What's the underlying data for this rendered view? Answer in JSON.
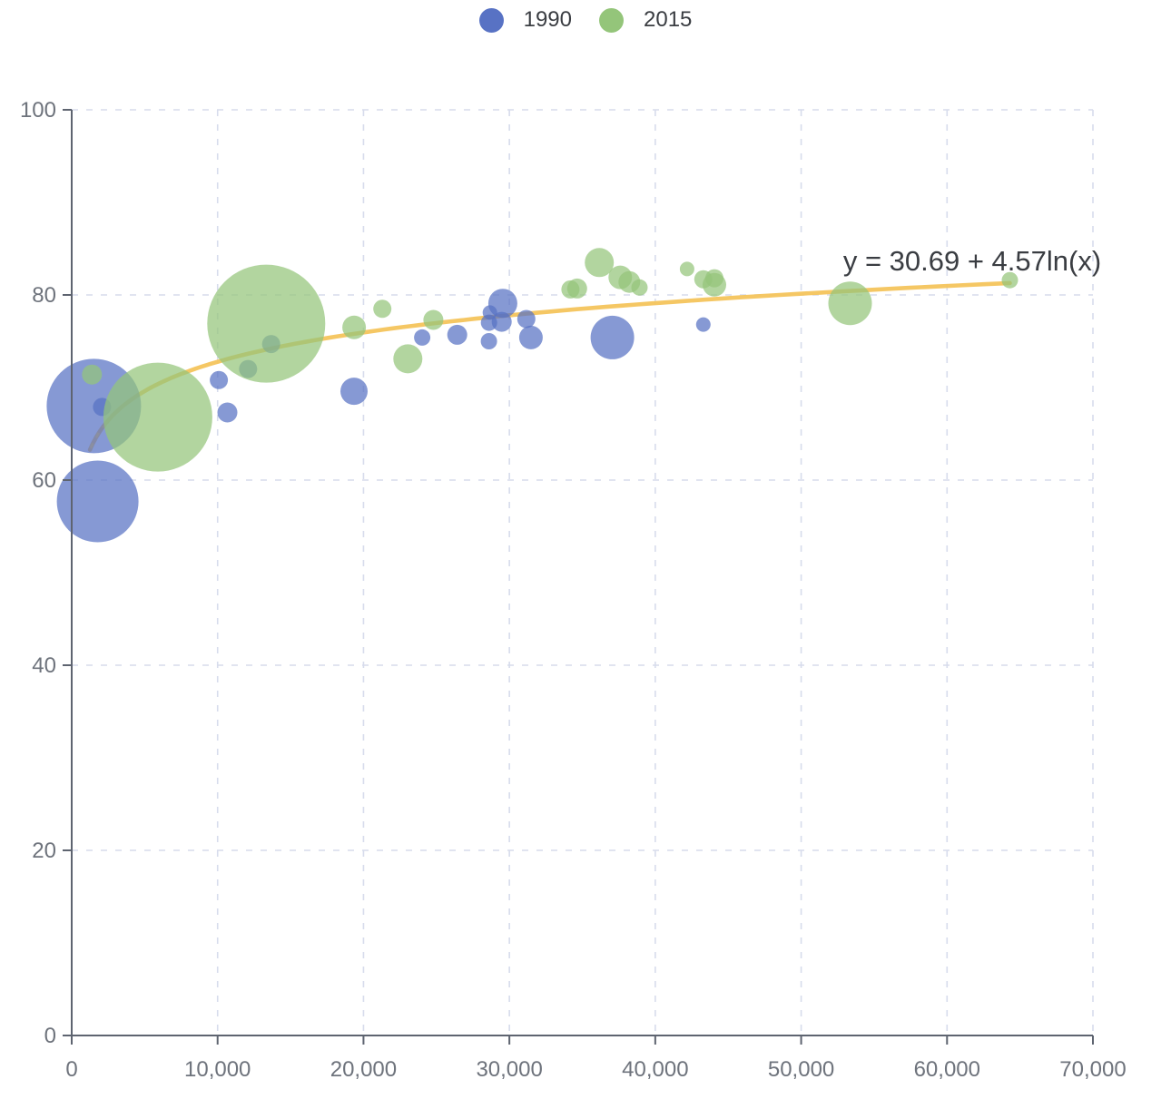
{
  "legend": {
    "items": [
      {
        "label": "1990",
        "color": "#5872c4"
      },
      {
        "label": "2015",
        "color": "#94c57a"
      }
    ]
  },
  "chart_data": {
    "type": "scatter",
    "title": "",
    "xlabel": "",
    "ylabel": "",
    "xlim": [
      0,
      70000
    ],
    "ylim": [
      0,
      100
    ],
    "grid": true,
    "legend_position": "top-center",
    "x_ticks": [
      {
        "value": 0,
        "label": "0"
      },
      {
        "value": 10000,
        "label": "10,000"
      },
      {
        "value": 20000,
        "label": "20,000"
      },
      {
        "value": 30000,
        "label": "30,000"
      },
      {
        "value": 40000,
        "label": "40,000"
      },
      {
        "value": 50000,
        "label": "50,000"
      },
      {
        "value": 60000,
        "label": "60,000"
      },
      {
        "value": 70000,
        "label": "70,000"
      }
    ],
    "y_ticks": [
      {
        "value": 0,
        "label": "0"
      },
      {
        "value": 20,
        "label": "20"
      },
      {
        "value": 40,
        "label": "40"
      },
      {
        "value": 60,
        "label": "60"
      },
      {
        "value": 80,
        "label": "80"
      },
      {
        "value": 100,
        "label": "100"
      }
    ],
    "series": [
      {
        "name": "1990",
        "color": "#5872c4",
        "opacity": 0.72,
        "points_xyr": [
          [
            1516,
            68.0,
            52
          ],
          [
            1777,
            57.7,
            45
          ],
          [
            2076,
            67.9,
            10
          ],
          [
            10088,
            70.8,
            10
          ],
          [
            10670,
            67.3,
            11
          ],
          [
            12087,
            72.0,
            10
          ],
          [
            13670,
            74.7,
            10
          ],
          [
            19349,
            69.6,
            15
          ],
          [
            24021,
            75.4,
            9
          ],
          [
            26424,
            75.7,
            11
          ],
          [
            28599,
            75.0,
            9
          ],
          [
            28604,
            77.0,
            9
          ],
          [
            28666,
            78.1,
            8
          ],
          [
            29476,
            77.1,
            11
          ],
          [
            29550,
            79.1,
            16
          ],
          [
            31163,
            77.4,
            10
          ],
          [
            31476,
            75.4,
            13
          ],
          [
            37062,
            75.4,
            24
          ],
          [
            43296,
            76.8,
            8
          ]
        ]
      },
      {
        "name": "2015",
        "color": "#94c57a",
        "opacity": 0.72,
        "points_xyr": [
          [
            1390,
            71.4,
            11
          ],
          [
            5903,
            66.8,
            60
          ],
          [
            13334,
            76.9,
            65
          ],
          [
            19360,
            76.5,
            13
          ],
          [
            21291,
            78.5,
            10
          ],
          [
            23038,
            73.1,
            16
          ],
          [
            24787,
            77.3,
            11
          ],
          [
            34186,
            80.6,
            10
          ],
          [
            34644,
            80.7,
            11
          ],
          [
            36162,
            83.5,
            16
          ],
          [
            37599,
            81.9,
            13
          ],
          [
            38225,
            81.4,
            12
          ],
          [
            38923,
            80.8,
            9
          ],
          [
            42182,
            82.8,
            8
          ],
          [
            43294,
            81.7,
            10
          ],
          [
            44053,
            81.1,
            13
          ],
          [
            44056,
            81.8,
            10
          ],
          [
            53354,
            79.1,
            24
          ],
          [
            64304,
            81.6,
            9
          ]
        ]
      }
    ],
    "trendline": {
      "equation_label": "y = 30.69 + 4.57ln(x)",
      "form": "y = a + b*ln(x)",
      "a": 30.69,
      "b": 4.57,
      "x_range": [
        1250,
        64304
      ],
      "color": "#f4c45c",
      "dashed_head": {
        "x_range": [
          1300,
          2200
        ],
        "color": "#8d919d"
      }
    },
    "styles": {
      "background": "#ffffff",
      "grid_color": "#d7dcec",
      "axis_color": "#5e6470",
      "tick_label_color": "#6e737c",
      "equation_color": "#3a3d42"
    }
  }
}
